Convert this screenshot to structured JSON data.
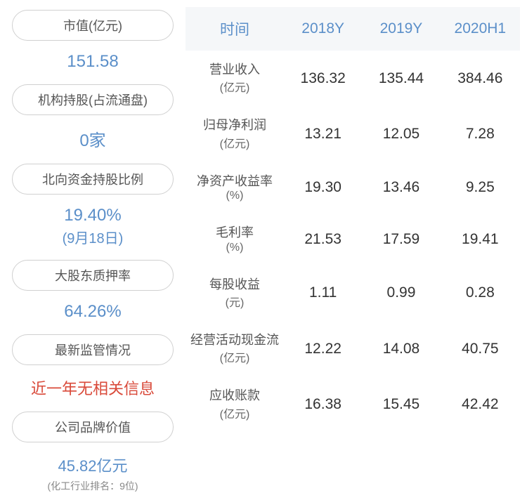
{
  "colors": {
    "pill_border": "#d0d0d0",
    "pill_text": "#555555",
    "value_blue": "#5b8fc9",
    "value_red": "#d94a3a",
    "note_gray": "#888888",
    "header_bg": "#f5f7f9",
    "header_text": "#5b8fc9",
    "label_text": "#555555",
    "cell_text": "#333333",
    "background": "#ffffff"
  },
  "left": {
    "items": [
      {
        "label": "市值(亿元)",
        "value": "151.58",
        "sub": "",
        "note": "",
        "color": "#5b8fc9"
      },
      {
        "label": "机构持股(占流通盘)",
        "value": "0家",
        "sub": "",
        "note": "",
        "color": "#5b8fc9"
      },
      {
        "label": "北向资金持股比例",
        "value": "19.40%",
        "sub": "(9月18日)",
        "note": "",
        "color": "#5b8fc9"
      },
      {
        "label": "大股东质押率",
        "value": "64.26%",
        "sub": "",
        "note": "",
        "color": "#5b8fc9"
      },
      {
        "label": "最新监管情况",
        "value": "近一年无相关信息",
        "sub": "",
        "note": "",
        "color": "#d94a3a"
      },
      {
        "label": "公司品牌价值",
        "value": "45.82亿元",
        "sub": "",
        "note": "(化工行业排名：9位)",
        "color": "#5b8fc9"
      }
    ]
  },
  "table": {
    "headers": [
      "时间",
      "2018Y",
      "2019Y",
      "2020H1"
    ],
    "rows": [
      {
        "label": "营业收入",
        "unit": "(亿元)",
        "values": [
          "136.32",
          "135.44",
          "384.46"
        ]
      },
      {
        "label": "归母净利润",
        "unit": "(亿元)",
        "values": [
          "13.21",
          "12.05",
          "7.28"
        ]
      },
      {
        "label": "净资产收益率",
        "unit": "(%)",
        "values": [
          "19.30",
          "13.46",
          "9.25"
        ]
      },
      {
        "label": "毛利率",
        "unit": "(%)",
        "values": [
          "21.53",
          "17.59",
          "19.41"
        ]
      },
      {
        "label": "每股收益",
        "unit": "(元)",
        "values": [
          "1.11",
          "0.99",
          "0.28"
        ]
      },
      {
        "label": "经营活动现金流",
        "unit": "(亿元)",
        "values": [
          "12.22",
          "14.08",
          "40.75"
        ]
      },
      {
        "label": "应收账款",
        "unit": "(亿元)",
        "values": [
          "16.38",
          "15.45",
          "42.42"
        ]
      }
    ]
  }
}
